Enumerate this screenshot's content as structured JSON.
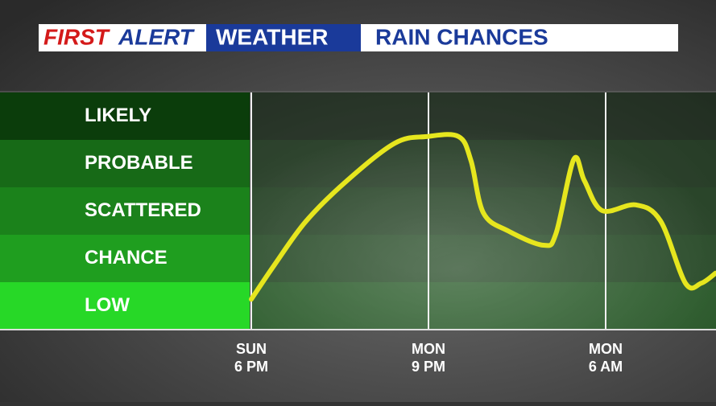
{
  "chart_data": {
    "type": "line",
    "header": {
      "first": "FIRST",
      "alert": "ALERT",
      "weather": "WEATHER",
      "title": "RAIN CHANCES"
    },
    "yticks": [
      {
        "value": 0.5,
        "label": "LOW"
      },
      {
        "value": 1.5,
        "label": "CHANCE"
      },
      {
        "value": 2.5,
        "label": "SCATTERED"
      },
      {
        "value": 3.5,
        "label": "PROBABLE"
      },
      {
        "value": 4.5,
        "label": "LIKELY"
      }
    ],
    "band_colors": [
      "#27d827",
      "#1f9e1f",
      "#1b821b",
      "#176a17",
      "#0b3d0b"
    ],
    "ylim": [
      0,
      5
    ],
    "xlim": [
      0,
      2.62
    ],
    "xticks": [
      {
        "value": 0,
        "day": "SUN",
        "time": "6 PM"
      },
      {
        "value": 1,
        "day": "MON",
        "time": "9 PM"
      },
      {
        "value": 2,
        "day": "MON",
        "time": "6 AM"
      }
    ],
    "series": [
      {
        "color": "#e6e61e",
        "x": [
          0,
          0.13,
          0.31,
          0.54,
          0.81,
          0.99,
          1.17,
          1.24,
          1.31,
          1.45,
          1.65,
          1.72,
          1.82,
          1.88,
          1.98,
          2.17,
          2.31,
          2.45,
          2.54,
          2.62
        ],
        "values": [
          0.64,
          1.36,
          2.29,
          3.14,
          3.93,
          4.07,
          4.07,
          3.56,
          2.46,
          2.08,
          1.78,
          2.03,
          3.59,
          3.14,
          2.51,
          2.63,
          2.29,
          0.98,
          0.98,
          1.19
        ]
      }
    ]
  }
}
